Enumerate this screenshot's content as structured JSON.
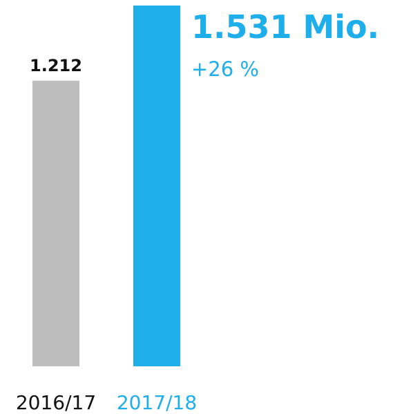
{
  "chart_data": {
    "type": "bar",
    "categories": [
      "2016/17",
      "2017/18"
    ],
    "values": [
      1.212,
      1.531
    ],
    "value_labels": [
      "1.212",
      "1.531 Mio."
    ],
    "colors": [
      "#bdbdbe",
      "#1eaeea"
    ],
    "label_colors": [
      "#111111",
      "#1eaeea"
    ],
    "annotation": "+26 %"
  }
}
